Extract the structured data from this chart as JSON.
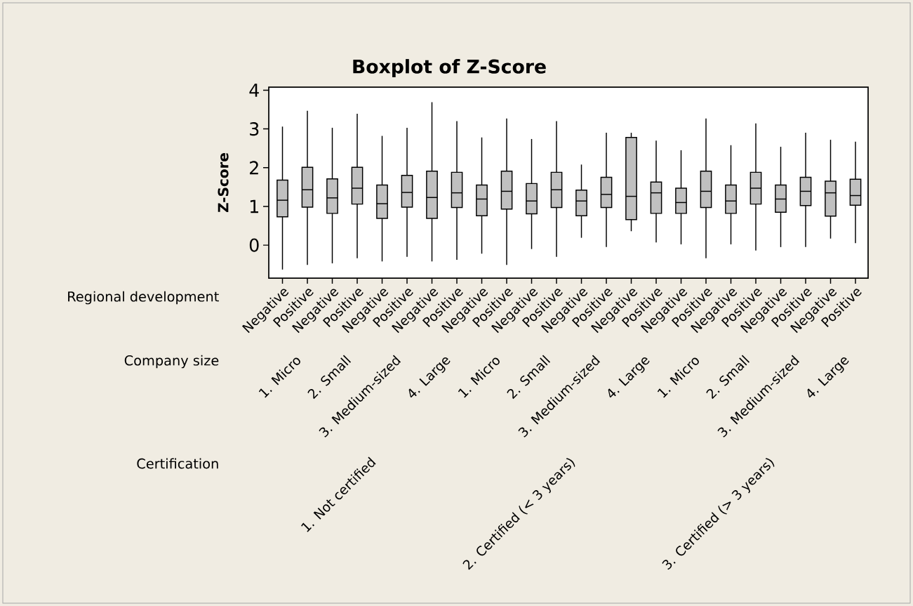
{
  "chart_data": {
    "type": "box",
    "title": "Boxplot of Z-Score",
    "ylabel": "Z-Score",
    "color": "#c0c0c0",
    "categories": [
      "Negative",
      "Positive",
      "Negative",
      "Positive",
      "Negative",
      "Positive",
      "Negative",
      "Positive",
      "Negative",
      "Positive",
      "Negative",
      "Positive",
      "Negative",
      "Positive",
      "Negative",
      "Positive",
      "Negative",
      "Positive",
      "Negative",
      "Positive",
      "Negative",
      "Positive",
      "Negative",
      "Positive"
    ],
    "boxes": [
      {
        "low": -0.63,
        "q1": 0.73,
        "median": 1.16,
        "q3": 1.68,
        "high": 3.06
      },
      {
        "low": -0.51,
        "q1": 0.98,
        "median": 1.43,
        "q3": 2.01,
        "high": 3.47
      },
      {
        "low": -0.47,
        "q1": 0.82,
        "median": 1.22,
        "q3": 1.71,
        "high": 3.03
      },
      {
        "low": -0.34,
        "q1": 1.06,
        "median": 1.47,
        "q3": 2.01,
        "high": 3.39
      },
      {
        "low": -0.42,
        "q1": 0.69,
        "median": 1.07,
        "q3": 1.55,
        "high": 2.82
      },
      {
        "low": -0.3,
        "q1": 0.98,
        "median": 1.36,
        "q3": 1.8,
        "high": 3.03
      },
      {
        "low": -0.42,
        "q1": 0.69,
        "median": 1.23,
        "q3": 1.91,
        "high": 3.69
      },
      {
        "low": -0.38,
        "q1": 0.97,
        "median": 1.35,
        "q3": 1.88,
        "high": 3.2
      },
      {
        "low": -0.22,
        "q1": 0.76,
        "median": 1.19,
        "q3": 1.55,
        "high": 2.78
      },
      {
        "low": -0.51,
        "q1": 0.93,
        "median": 1.39,
        "q3": 1.91,
        "high": 3.27
      },
      {
        "low": -0.1,
        "q1": 0.81,
        "median": 1.14,
        "q3": 1.59,
        "high": 2.74
      },
      {
        "low": -0.3,
        "q1": 0.97,
        "median": 1.43,
        "q3": 1.88,
        "high": 3.2
      },
      {
        "low": 0.19,
        "q1": 0.76,
        "median": 1.14,
        "q3": 1.42,
        "high": 2.08
      },
      {
        "low": -0.05,
        "q1": 0.97,
        "median": 1.31,
        "q3": 1.75,
        "high": 2.9
      },
      {
        "low": 0.36,
        "q1": 0.66,
        "median": 1.26,
        "q3": 2.78,
        "high": 2.9
      },
      {
        "low": 0.07,
        "q1": 0.82,
        "median": 1.35,
        "q3": 1.63,
        "high": 2.7
      },
      {
        "low": 0.02,
        "q1": 0.82,
        "median": 1.1,
        "q3": 1.47,
        "high": 2.45
      },
      {
        "low": -0.34,
        "q1": 0.97,
        "median": 1.39,
        "q3": 1.91,
        "high": 3.27
      },
      {
        "low": 0.02,
        "q1": 0.82,
        "median": 1.14,
        "q3": 1.55,
        "high": 2.58
      },
      {
        "low": -0.14,
        "q1": 1.06,
        "median": 1.47,
        "q3": 1.88,
        "high": 3.14
      },
      {
        "low": -0.05,
        "q1": 0.85,
        "median": 1.19,
        "q3": 1.55,
        "high": 2.54
      },
      {
        "low": -0.05,
        "q1": 1.02,
        "median": 1.39,
        "q3": 1.75,
        "high": 2.9
      },
      {
        "low": 0.17,
        "q1": 0.75,
        "median": 1.35,
        "q3": 1.65,
        "high": 2.72
      },
      {
        "low": 0.05,
        "q1": 1.03,
        "median": 1.28,
        "q3": 1.7,
        "high": 2.67
      }
    ],
    "ylim": [
      -0.85,
      4.08
    ],
    "yticks": [
      0,
      1,
      2,
      3,
      4
    ],
    "grid": false,
    "annotations": [
      "Regional development",
      "Company size",
      "Certification",
      "1. Micro",
      "2. Small",
      "3. Medium-sized",
      "4. Large",
      "1. Micro",
      "2. Small",
      "3. Medium-sized",
      "4. Large",
      "1. Micro",
      "2. Small",
      "3. Medium-sized",
      "4. Large",
      "1. Not certified",
      "2. Certified (< 3 years)",
      "3. Certified (> 3 years)"
    ]
  }
}
